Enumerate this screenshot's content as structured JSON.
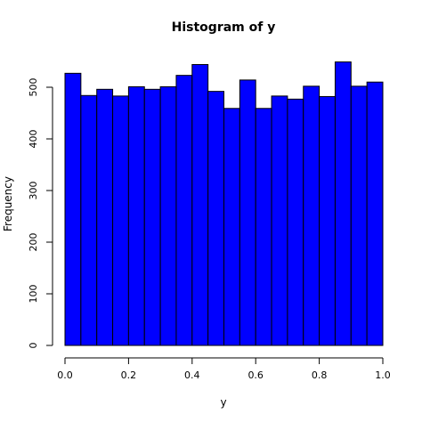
{
  "chart_data": {
    "type": "bar",
    "title": "Histogram of y",
    "xlabel": "y",
    "ylabel": "Frequency",
    "bar_color": "#0000ff",
    "bar_edge_color": "#000000",
    "xlim": [
      0.0,
      1.0
    ],
    "ylim": [
      0,
      550
    ],
    "bin_edges": [
      0.0,
      0.05,
      0.1,
      0.15,
      0.2,
      0.25,
      0.3,
      0.35,
      0.4,
      0.45,
      0.5,
      0.55,
      0.6,
      0.65,
      0.7,
      0.75,
      0.8,
      0.85,
      0.9,
      0.95,
      1.0
    ],
    "values": [
      527,
      484,
      496,
      483,
      501,
      496,
      501,
      523,
      544,
      492,
      459,
      514,
      459,
      483,
      477,
      502,
      482,
      549,
      502,
      510
    ],
    "x_ticks": [
      0.0,
      0.2,
      0.4,
      0.6,
      0.8,
      1.0
    ],
    "x_tick_labels": [
      "0.0",
      "0.2",
      "0.4",
      "0.6",
      "0.8",
      "1.0"
    ],
    "y_ticks": [
      0,
      100,
      200,
      300,
      400,
      500
    ],
    "y_tick_labels": [
      "0",
      "100",
      "200",
      "300",
      "400",
      "500"
    ],
    "grid": false,
    "legend": "none"
  }
}
